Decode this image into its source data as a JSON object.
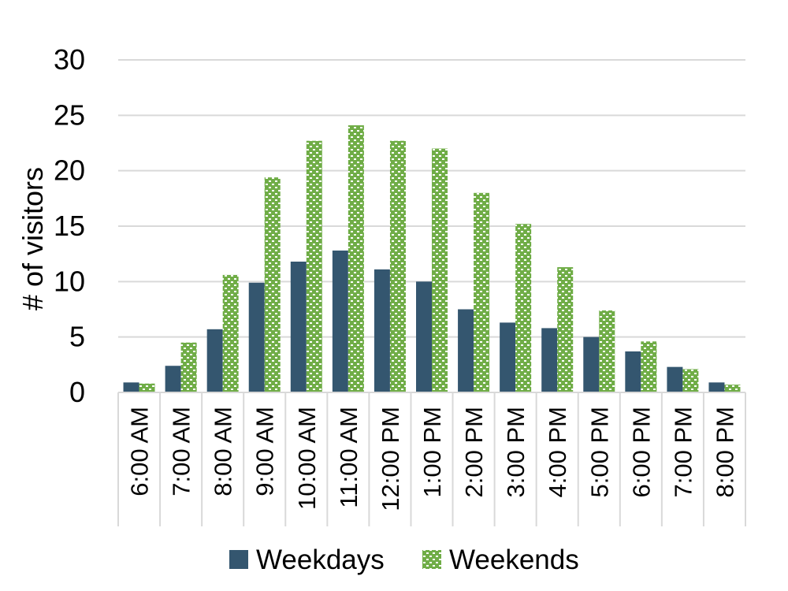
{
  "chart_data": {
    "type": "bar",
    "title": "",
    "xlabel": "",
    "ylabel": "# of visitors",
    "ylim": [
      0,
      30
    ],
    "yticks": [
      0,
      5,
      10,
      15,
      20,
      25,
      30
    ],
    "grid": true,
    "legend_position": "bottom",
    "categories": [
      "6:00 AM",
      "7:00 AM",
      "8:00 AM",
      "9:00 AM",
      "10:00 AM",
      "11:00 AM",
      "12:00 PM",
      "1:00 PM",
      "2:00 PM",
      "3:00 PM",
      "4:00 PM",
      "5:00 PM",
      "6:00 PM",
      "7:00 PM",
      "8:00 PM"
    ],
    "series": [
      {
        "name": "Weekdays",
        "color": "#34566f",
        "pattern": "solid",
        "values": [
          0.9,
          2.4,
          5.7,
          9.9,
          11.8,
          12.8,
          11.1,
          10.0,
          7.5,
          6.3,
          5.8,
          5.0,
          3.7,
          2.3,
          0.9
        ]
      },
      {
        "name": "Weekends",
        "color": "#70ad47",
        "pattern": "checkered",
        "values": [
          0.8,
          4.5,
          10.6,
          19.4,
          22.7,
          24.1,
          22.7,
          22.0,
          18.0,
          15.2,
          11.3,
          7.4,
          4.6,
          2.1,
          0.7
        ]
      }
    ]
  }
}
